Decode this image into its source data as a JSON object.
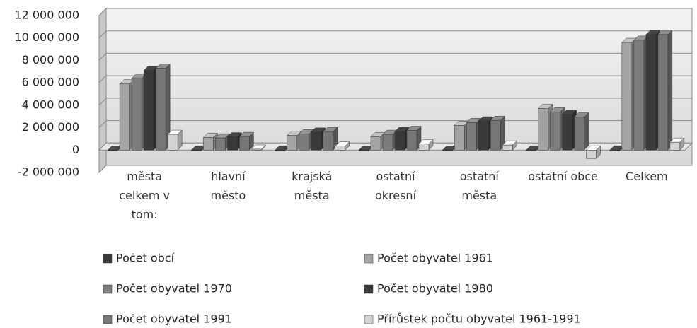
{
  "chart_data": {
    "type": "bar3d",
    "categories": [
      "města celkem v tom:",
      "hlavní město",
      "krajská města",
      "ostatní okresní",
      "ostatní města",
      "ostatní obce",
      "Celkem"
    ],
    "series": [
      {
        "name": "Počet obcí",
        "color": "#3c3c3c",
        "values": [
          500,
          1,
          7,
          68,
          400,
          5700,
          6200
        ]
      },
      {
        "name": "Počet obyvatel 1961",
        "color": "#a4a4a4",
        "values": [
          5900000,
          1130000,
          1300000,
          1200000,
          2200000,
          3700000,
          9600000
        ]
      },
      {
        "name": "Počet obyvatel 1970",
        "color": "#7c7c7c",
        "values": [
          6400000,
          1080000,
          1450000,
          1400000,
          2450000,
          3400000,
          9800000
        ]
      },
      {
        "name": "Počet obyvatel 1980",
        "color": "#3a3a3a",
        "values": [
          7100000,
          1180000,
          1600000,
          1650000,
          2600000,
          3200000,
          10300000
        ]
      },
      {
        "name": "Počet obyvatel 1991",
        "color": "#767676",
        "values": [
          7300000,
          1210000,
          1650000,
          1750000,
          2650000,
          2950000,
          10300000
        ]
      },
      {
        "name": "Přírůstek počtu obyvatel 1961-1991",
        "color": "#d2d2d2",
        "values": [
          1400000,
          80000,
          350000,
          550000,
          450000,
          -750000,
          700000
        ]
      }
    ],
    "ylim": [
      -2000000,
      12000000
    ],
    "yticks": [
      {
        "value": -2000000,
        "label": "-2 000 000"
      },
      0,
      {
        "value": 2000000,
        "label": "2 000 000"
      },
      {
        "value": 4000000,
        "label": "4 000 000"
      },
      {
        "value": 6000000,
        "label": "6 000 000"
      },
      {
        "value": 8000000,
        "label": "8 000 000"
      },
      {
        "value": 10000000,
        "label": "10 000 000"
      },
      {
        "value": 12000000,
        "label": "12 000 000"
      }
    ],
    "grid": true
  }
}
